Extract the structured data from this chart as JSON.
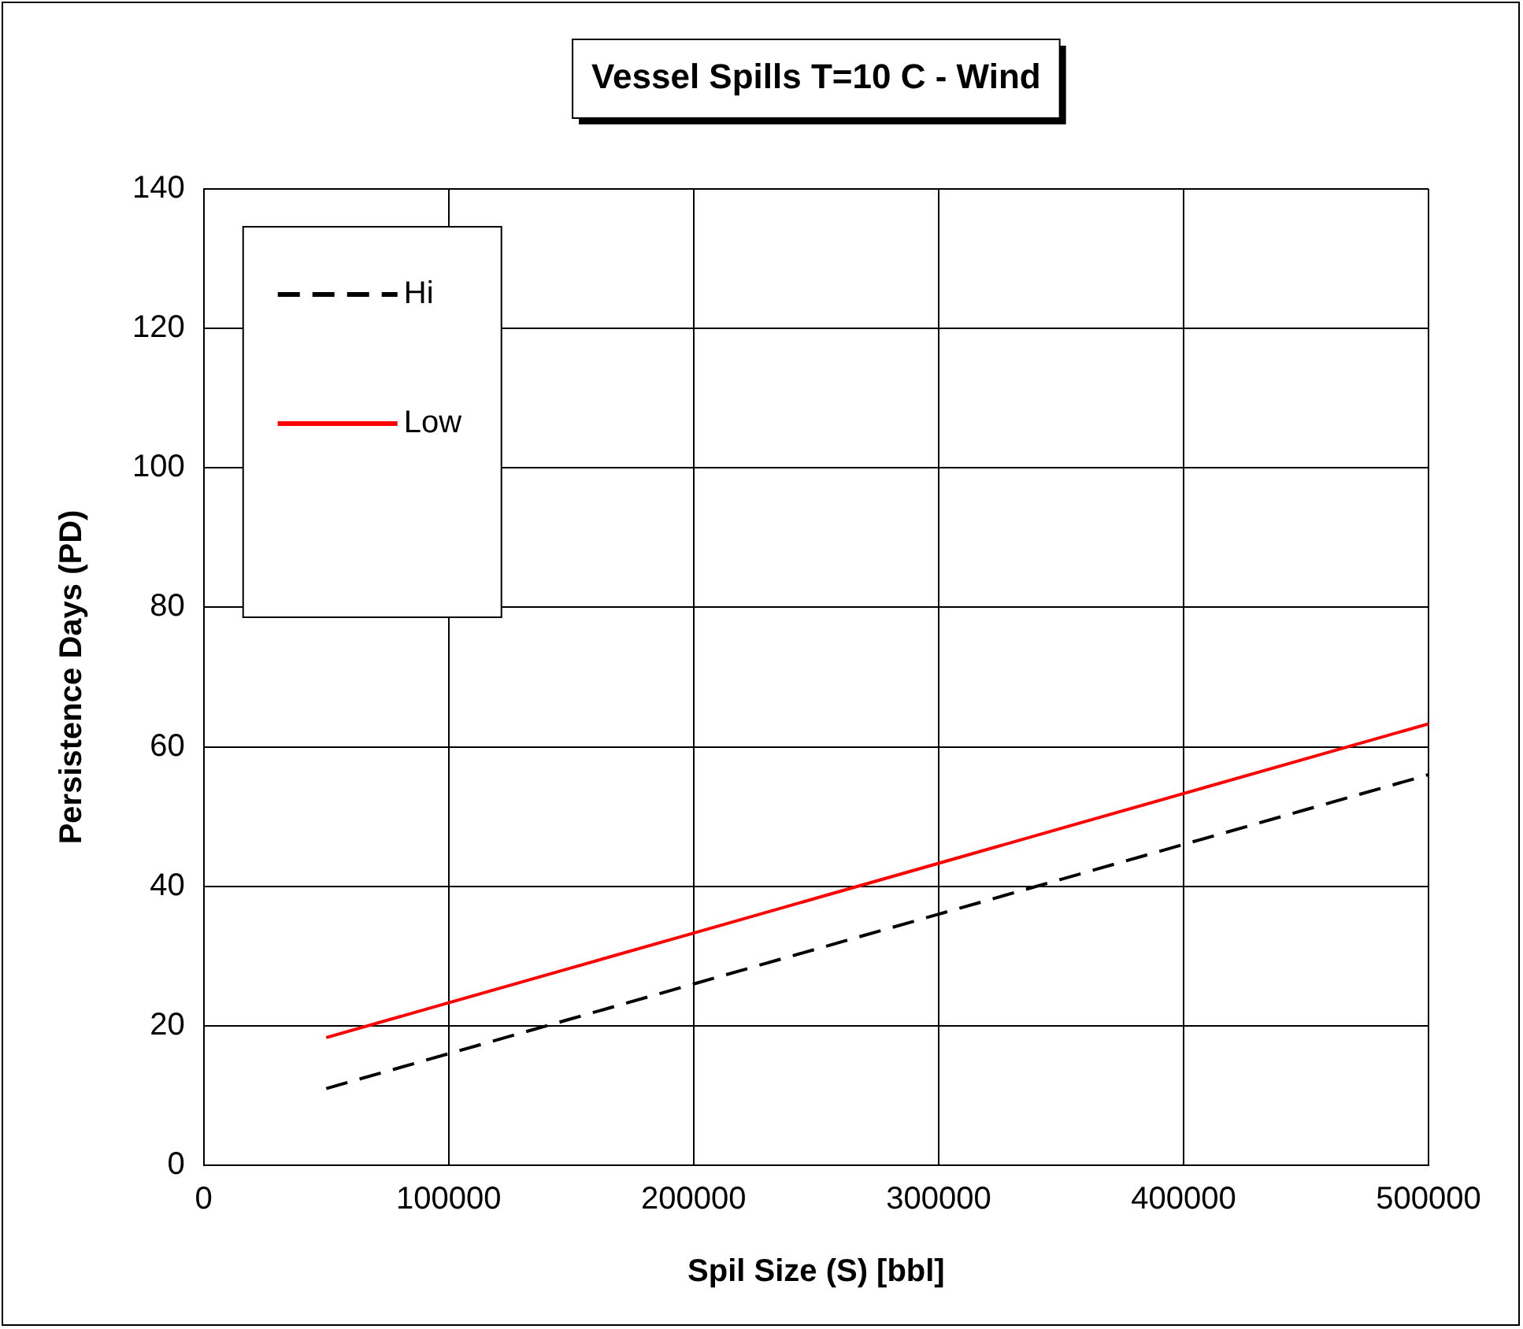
{
  "chart_data": {
    "type": "line",
    "title": "Vessel Spills T=10 C - Wind",
    "xlabel": "Spil Size (S) [bbl]",
    "ylabel": "Persistence Days (PD)",
    "x": [
      50000,
      100000,
      150000,
      200000,
      250000,
      300000,
      350000,
      400000,
      450000,
      500000
    ],
    "series": [
      {
        "name": "Hi",
        "color": "#000000",
        "line_style": "dashed",
        "values": [
          11,
          16,
          21,
          26,
          31,
          36,
          41,
          46,
          51,
          56
        ]
      },
      {
        "name": "Low",
        "color": "#ff0000",
        "line_style": "solid",
        "values": [
          18.3,
          23.3,
          28.3,
          33.3,
          38.3,
          43.3,
          48.3,
          53.3,
          58.3,
          63.3
        ]
      }
    ],
    "xlim": [
      0,
      500000
    ],
    "xticks": [
      0,
      100000,
      200000,
      300000,
      400000,
      500000
    ],
    "ylim": [
      0,
      140
    ],
    "yticks": [
      0,
      20,
      40,
      60,
      80,
      100,
      120,
      140
    ],
    "grid": true,
    "legend": "top left",
    "marker": "none"
  }
}
